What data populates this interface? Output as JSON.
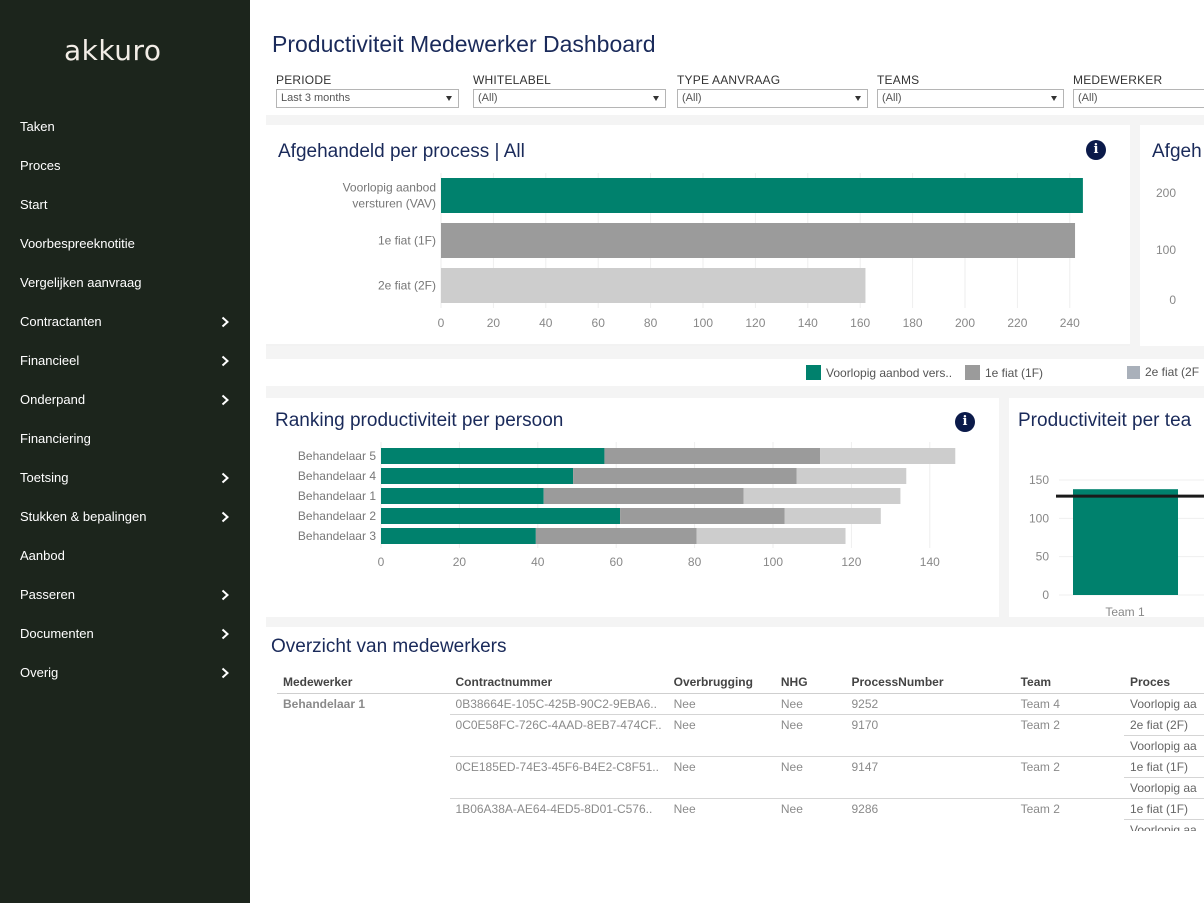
{
  "app": {
    "logo": "akkuro"
  },
  "sidebar": {
    "items": [
      {
        "label": "Taken",
        "has_children": false
      },
      {
        "label": "Proces",
        "has_children": false
      },
      {
        "label": "Start",
        "has_children": false
      },
      {
        "label": "Voorbespreeknotitie",
        "has_children": false
      },
      {
        "label": "Vergelijken aanvraag",
        "has_children": false
      },
      {
        "label": "Contractanten",
        "has_children": true
      },
      {
        "label": "Financieel",
        "has_children": true
      },
      {
        "label": "Onderpand",
        "has_children": true
      },
      {
        "label": "Financiering",
        "has_children": false
      },
      {
        "label": "Toetsing",
        "has_children": true
      },
      {
        "label": "Stukken & bepalingen",
        "has_children": true
      },
      {
        "label": "Aanbod",
        "has_children": false
      },
      {
        "label": "Passeren",
        "has_children": true
      },
      {
        "label": "Documenten",
        "has_children": true
      },
      {
        "label": "Overig",
        "has_children": true
      }
    ]
  },
  "dashboard": {
    "title": "Productiviteit Medewerker Dashboard",
    "filters": {
      "periode": {
        "label": "PERIODE",
        "value": "Last 3 months"
      },
      "whitelabel": {
        "label": "WHITELABEL",
        "value": "(All)"
      },
      "type_aanvraag": {
        "label": "TYPE AANVRAAG",
        "value": "(All)"
      },
      "teams": {
        "label": "TEAMS",
        "value": "(All)"
      },
      "medewerker": {
        "label": "MEDEWERKER",
        "value": "(All)"
      }
    },
    "colors": {
      "teal": "#00816d",
      "gray": "#9b9b9b",
      "lightgray": "#cdcdcd",
      "title": "#1a2a5a"
    },
    "panel_process": {
      "title": "Afgehandeld per process | All",
      "info_icon": "i"
    },
    "panel_right_top": {
      "title": "Afgeh"
    },
    "panel_ranking": {
      "title": "Ranking productiviteit per persoon",
      "info_icon": "i"
    },
    "panel_team": {
      "title": "Productiviteit per tea"
    },
    "legend": [
      {
        "label": "Voorlopig aanbod vers..",
        "color": "#00816d"
      },
      {
        "label": "1e fiat (1F)",
        "color": "#9b9b9b"
      },
      {
        "label": "2e fiat (2F",
        "color": "#a9b0ba"
      }
    ],
    "overview": {
      "title": "Overzicht van medewerkers",
      "columns": [
        "Medewerker",
        "Contractnummer",
        "Overbrugging",
        "NHG",
        "ProcessNumber",
        "Team",
        "Proces"
      ],
      "groups": [
        {
          "medewerker": "Behandelaar 1",
          "rows": [
            {
              "contract": "0B38664E-105C-425B-90C2-9EBA6..",
              "overbrugging": "Nee",
              "nhg": "Nee",
              "process_number": "9252",
              "team": "Team 4",
              "proces": [
                "Voorlopig aa"
              ]
            },
            {
              "contract": "0C0E58FC-726C-4AAD-8EB7-474CF..",
              "overbrugging": "Nee",
              "nhg": "Nee",
              "process_number": "9170",
              "team": "Team 2",
              "proces": [
                "2e fiat (2F)",
                "Voorlopig aa"
              ]
            },
            {
              "contract": "0CE185ED-74E3-45F6-B4E2-C8F51..",
              "overbrugging": "Nee",
              "nhg": "Nee",
              "process_number": "9147",
              "team": "Team 2",
              "proces": [
                "1e fiat (1F)",
                "Voorlopig aa"
              ]
            },
            {
              "contract": "1B06A38A-AE64-4ED5-8D01-C576..",
              "overbrugging": "Nee",
              "nhg": "Nee",
              "process_number": "9286",
              "team": "Team 2",
              "proces": [
                "1e fiat (1F)",
                "Voorlopig aa"
              ]
            }
          ]
        }
      ]
    }
  },
  "chart_data": [
    {
      "type": "bar",
      "orientation": "horizontal",
      "title": "Afgehandeld per process | All",
      "categories": [
        "Voorlopig aanbod versturen (VAV)",
        "1e fiat (1F)",
        "2e fiat (2F)"
      ],
      "category_lines": [
        [
          "Voorlopig aanbod",
          "versturen (VAV)"
        ],
        [
          "1e fiat (1F)"
        ],
        [
          "2e fiat (2F)"
        ]
      ],
      "values": [
        245,
        242,
        162
      ],
      "colors": [
        "#00816d",
        "#9b9b9b",
        "#cdcdcd"
      ],
      "xlim": [
        0,
        250
      ],
      "xticks": [
        0,
        20,
        40,
        60,
        80,
        100,
        120,
        140,
        160,
        180,
        200,
        220,
        240
      ]
    },
    {
      "type": "bar",
      "partial": true,
      "title": "Afgeh",
      "yticks": [
        0,
        100,
        200
      ]
    },
    {
      "type": "bar",
      "orientation": "horizontal",
      "stacked": true,
      "title": "Ranking productiviteit per persoon",
      "categories": [
        "Behandelaar 5",
        "Behandelaar 4",
        "Behandelaar 1",
        "Behandelaar 2",
        "Behandelaar 3"
      ],
      "series": [
        {
          "name": "Voorlopig aanbod vers..",
          "color": "#00816d",
          "values": [
            57,
            49,
            41.5,
            61,
            39.5
          ]
        },
        {
          "name": "1e fiat (1F)",
          "color": "#9b9b9b",
          "values": [
            55,
            57,
            51,
            42,
            41
          ]
        },
        {
          "name": "2e fiat (2F",
          "color": "#cdcdcd",
          "values": [
            34.5,
            28,
            40,
            24.5,
            38
          ]
        }
      ],
      "xlim": [
        0,
        150
      ],
      "xticks": [
        0,
        20,
        40,
        60,
        80,
        100,
        120,
        140
      ]
    },
    {
      "type": "bar",
      "title": "Productiviteit per tea",
      "categories": [
        "Team 1"
      ],
      "values": [
        138
      ],
      "reference_line": 129,
      "ylim": [
        0,
        160
      ],
      "yticks": [
        0,
        50,
        100,
        150
      ],
      "color": "#00816d"
    }
  ]
}
